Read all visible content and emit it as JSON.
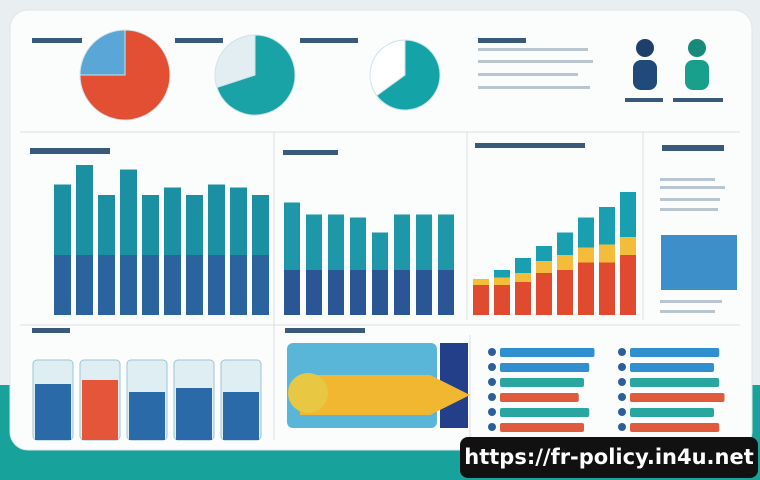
{
  "watermark": "https://fr-policy.in4u.net",
  "pies": [
    [
      75,
      25
    ],
    [
      70,
      30
    ],
    [
      65,
      35
    ]
  ],
  "bar_chart_1": [
    87,
    100,
    80,
    97,
    80,
    85,
    80,
    87,
    85,
    80
  ],
  "bar_chart_2": [
    75,
    67,
    67,
    65,
    55,
    67,
    67,
    67
  ],
  "stacked_chart": {
    "red": [
      20,
      20,
      22,
      28,
      30,
      35,
      35,
      40
    ],
    "yellow": [
      4,
      5,
      6,
      8,
      10,
      10,
      12,
      12
    ],
    "teal": [
      0,
      5,
      10,
      10,
      15,
      20,
      25,
      30
    ]
  },
  "cups": [
    70,
    75,
    60,
    65,
    60
  ],
  "list_bars": [
    [
      90,
      85,
      80,
      75,
      85,
      80
    ],
    [
      85,
      80,
      85,
      90,
      80,
      85
    ]
  ]
}
